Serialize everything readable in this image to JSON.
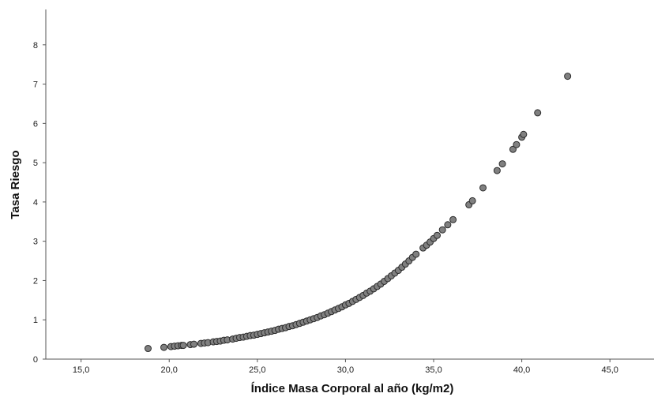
{
  "chart_data": {
    "type": "scatter",
    "xlabel": "Índice Masa Corporal al año (kg/m2)",
    "ylabel": "Tasa Riesgo",
    "xlim": [
      13,
      47.5
    ],
    "ylim": [
      0,
      8.9
    ],
    "x_ticks": [
      15,
      20,
      25,
      30,
      35,
      40,
      45
    ],
    "x_tick_labels": [
      "15,0",
      "20,0",
      "25,0",
      "30,0",
      "35,0",
      "40,0",
      "45,0"
    ],
    "y_ticks": [
      0,
      1,
      2,
      3,
      4,
      5,
      6,
      7,
      8
    ],
    "y_tick_labels": [
      "0",
      "1",
      "2",
      "3",
      "4",
      "5",
      "6",
      "7",
      "8"
    ],
    "grid": false,
    "colors": {
      "marker_fill": "#808080",
      "marker_edge": "#2b2b2b",
      "axis": "#555555"
    },
    "series": [
      {
        "points": [
          [
            18.8,
            0.27
          ],
          [
            19.7,
            0.3
          ],
          [
            20.1,
            0.32
          ],
          [
            20.3,
            0.33
          ],
          [
            20.5,
            0.34
          ],
          [
            20.7,
            0.35
          ],
          [
            20.8,
            0.35
          ],
          [
            21.2,
            0.37
          ],
          [
            21.4,
            0.38
          ],
          [
            21.8,
            0.4
          ],
          [
            22.0,
            0.41
          ],
          [
            22.2,
            0.42
          ],
          [
            22.5,
            0.44
          ],
          [
            22.7,
            0.45
          ],
          [
            22.9,
            0.46
          ],
          [
            23.1,
            0.48
          ],
          [
            23.3,
            0.49
          ],
          [
            23.6,
            0.51
          ],
          [
            23.8,
            0.53
          ],
          [
            24.0,
            0.55
          ],
          [
            24.2,
            0.56
          ],
          [
            24.4,
            0.58
          ],
          [
            24.6,
            0.6
          ],
          [
            24.8,
            0.61
          ],
          [
            25.0,
            0.63
          ],
          [
            25.2,
            0.65
          ],
          [
            25.4,
            0.67
          ],
          [
            25.6,
            0.69
          ],
          [
            25.8,
            0.71
          ],
          [
            26.0,
            0.73
          ],
          [
            26.2,
            0.76
          ],
          [
            26.4,
            0.78
          ],
          [
            26.6,
            0.8
          ],
          [
            26.8,
            0.83
          ],
          [
            27.0,
            0.85
          ],
          [
            27.2,
            0.88
          ],
          [
            27.4,
            0.91
          ],
          [
            27.6,
            0.94
          ],
          [
            27.8,
            0.97
          ],
          [
            28.0,
            1.0
          ],
          [
            28.2,
            1.03
          ],
          [
            28.4,
            1.06
          ],
          [
            28.6,
            1.1
          ],
          [
            28.8,
            1.13
          ],
          [
            29.0,
            1.17
          ],
          [
            29.2,
            1.21
          ],
          [
            29.4,
            1.25
          ],
          [
            29.6,
            1.29
          ],
          [
            29.8,
            1.33
          ],
          [
            30.0,
            1.38
          ],
          [
            30.2,
            1.42
          ],
          [
            30.4,
            1.47
          ],
          [
            30.6,
            1.52
          ],
          [
            30.8,
            1.57
          ],
          [
            31.0,
            1.62
          ],
          [
            31.2,
            1.68
          ],
          [
            31.4,
            1.73
          ],
          [
            31.6,
            1.79
          ],
          [
            31.8,
            1.85
          ],
          [
            32.0,
            1.91
          ],
          [
            32.2,
            1.98
          ],
          [
            32.4,
            2.05
          ],
          [
            32.6,
            2.12
          ],
          [
            32.8,
            2.19
          ],
          [
            33.0,
            2.26
          ],
          [
            33.2,
            2.34
          ],
          [
            33.4,
            2.42
          ],
          [
            33.6,
            2.5
          ],
          [
            33.8,
            2.59
          ],
          [
            34.0,
            2.67
          ],
          [
            34.4,
            2.83
          ],
          [
            34.6,
            2.9
          ],
          [
            34.8,
            2.98
          ],
          [
            35.0,
            3.07
          ],
          [
            35.2,
            3.15
          ],
          [
            35.5,
            3.29
          ],
          [
            35.8,
            3.42
          ],
          [
            36.1,
            3.55
          ],
          [
            37.0,
            3.93
          ],
          [
            37.2,
            4.03
          ],
          [
            37.8,
            4.36
          ],
          [
            38.6,
            4.8
          ],
          [
            38.9,
            4.97
          ],
          [
            39.5,
            5.34
          ],
          [
            39.7,
            5.46
          ],
          [
            40.0,
            5.65
          ],
          [
            40.1,
            5.72
          ],
          [
            40.9,
            6.27
          ],
          [
            42.6,
            7.2
          ]
        ]
      }
    ]
  }
}
